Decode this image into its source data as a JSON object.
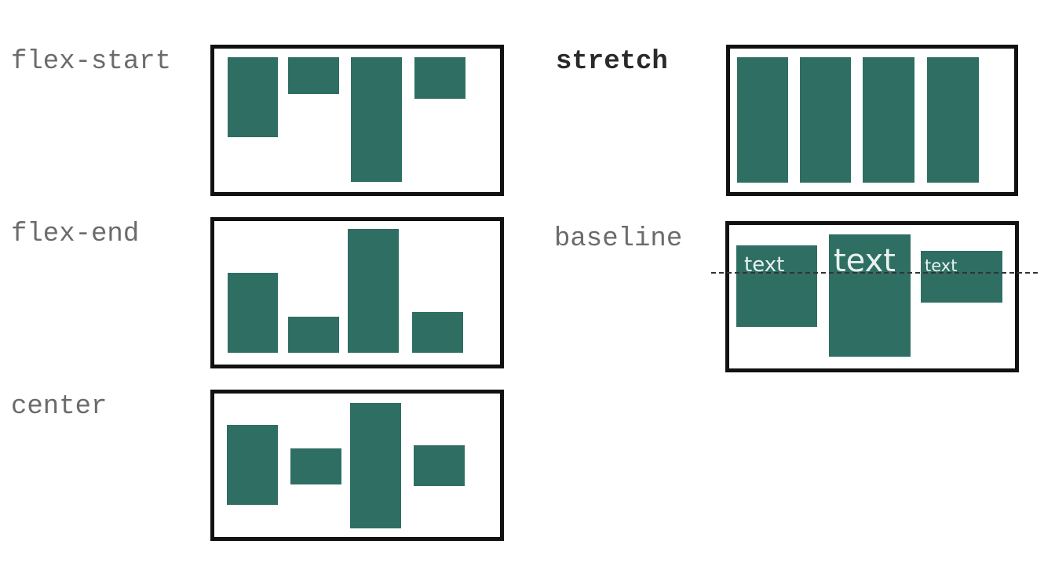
{
  "colors": {
    "item_fill": "#2f6f63",
    "frame_stroke": "#111111",
    "label_text": "#6b6b6b",
    "box_text": "#e9f2ef"
  },
  "panels": {
    "flex_start": {
      "label": "flex-start"
    },
    "flex_end": {
      "label": "flex-end"
    },
    "center": {
      "label": "center"
    },
    "stretch": {
      "label": "stretch"
    },
    "baseline": {
      "label": "baseline",
      "items": [
        {
          "text": "text"
        },
        {
          "text": "text"
        },
        {
          "text": "text"
        }
      ]
    }
  }
}
